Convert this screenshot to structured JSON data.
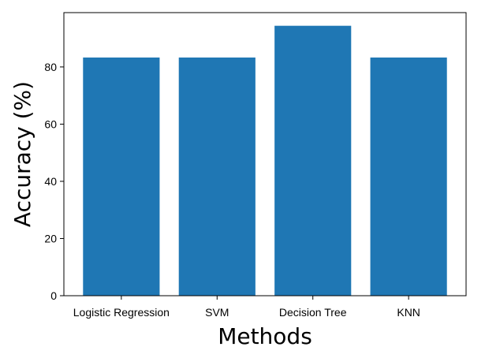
{
  "chart_data": {
    "type": "bar",
    "categories": [
      "Logistic Regression",
      "SVM",
      "Decision Tree",
      "KNN"
    ],
    "values": [
      83.3,
      83.3,
      94.4,
      83.3
    ],
    "xlabel": "Methods",
    "ylabel": "Accuracy (%)",
    "ylim": [
      0,
      99
    ],
    "yticks": [
      0,
      20,
      40,
      60,
      80
    ],
    "grid": false,
    "bar_color": "#1f77b4"
  }
}
